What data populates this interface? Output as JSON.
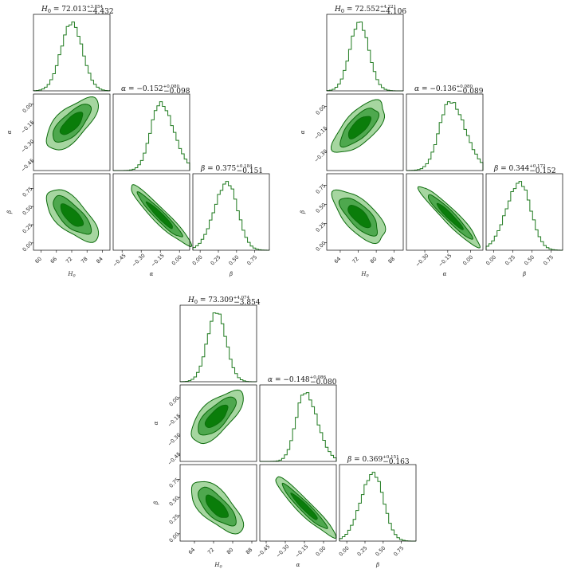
{
  "chart_data": [
    {
      "type": "corner",
      "params": [
        {
          "symbol": "H0",
          "ticks": [
            60,
            66,
            72,
            78,
            84
          ],
          "range": [
            57,
            87
          ],
          "peak": 72.0,
          "sigma": 4.2
        },
        {
          "symbol": "α",
          "ticks": [
            -0.45,
            -0.3,
            -0.15,
            0.0
          ],
          "range": [
            -0.52,
            0.08
          ],
          "peak": -0.152,
          "sigma": 0.09
        },
        {
          "symbol": "β",
          "ticks": [
            0.0,
            0.25,
            0.5,
            0.75
          ],
          "range": [
            -0.1,
            0.95
          ],
          "peak": 0.375,
          "sigma": 0.16
        }
      ],
      "titles": [
        {
          "lhs": "H_0",
          "value": "72.013",
          "plus": "+3.854",
          "minus": "−4.432"
        },
        {
          "lhs": "α",
          "value": "−0.152",
          "plus": "+0.080",
          "minus": "−0.098"
        },
        {
          "lhs": "β",
          "value": "0.375",
          "plus": "+0.184",
          "minus": "−0.151"
        }
      ],
      "tick_labels": {
        "H0": [
          "60",
          "66",
          "72",
          "78",
          "84"
        ],
        "alpha": [
          "−0.45",
          "−0.30",
          "−0.15",
          "0.00"
        ],
        "beta": [
          "0.00",
          "0.25",
          "0.50",
          "0.75"
        ]
      }
    },
    {
      "type": "corner",
      "params": [
        {
          "symbol": "H0",
          "ticks": [
            64,
            72,
            80,
            88
          ],
          "range": [
            58,
            92
          ],
          "peak": 72.5,
          "sigma": 4.2
        },
        {
          "symbol": "α",
          "ticks": [
            -0.3,
            -0.15,
            0.0
          ],
          "range": [
            -0.42,
            0.08
          ],
          "peak": -0.136,
          "sigma": 0.085
        },
        {
          "symbol": "β",
          "ticks": [
            0.0,
            0.25,
            0.5,
            0.75
          ],
          "range": [
            -0.1,
            0.9
          ],
          "peak": 0.344,
          "sigma": 0.16
        }
      ],
      "titles": [
        {
          "lhs": "H_0",
          "value": "72.552",
          "plus": "+4.221",
          "minus": "−4.106"
        },
        {
          "lhs": "α",
          "value": "−0.136",
          "plus": "+0.080",
          "minus": "−0.089"
        },
        {
          "lhs": "β",
          "value": "0.344",
          "plus": "+0.172",
          "minus": "−0.152"
        }
      ],
      "tick_labels": {
        "H0": [
          "64",
          "72",
          "80",
          "88"
        ],
        "alpha": [
          "−0.30",
          "−0.15",
          "0.00"
        ],
        "beta": [
          "0.00",
          "0.25",
          "0.50",
          "0.75"
        ]
      }
    },
    {
      "type": "corner",
      "params": [
        {
          "symbol": "H0",
          "ticks": [
            64,
            72,
            80,
            88
          ],
          "range": [
            58,
            90
          ],
          "peak": 73.3,
          "sigma": 3.9
        },
        {
          "symbol": "α",
          "ticks": [
            -0.45,
            -0.3,
            -0.15,
            0.0
          ],
          "range": [
            -0.5,
            0.1
          ],
          "peak": -0.148,
          "sigma": 0.083
        },
        {
          "symbol": "β",
          "ticks": [
            0.0,
            0.25,
            0.5,
            0.75
          ],
          "range": [
            -0.1,
            0.95
          ],
          "peak": 0.369,
          "sigma": 0.157
        }
      ],
      "titles": [
        {
          "lhs": "H_0",
          "value": "73.309",
          "plus": "+4.074",
          "minus": "−3.854"
        },
        {
          "lhs": "α",
          "value": "−0.148",
          "plus": "+0.086",
          "minus": "−0.080"
        },
        {
          "lhs": "β",
          "value": "0.369",
          "plus": "+0.151",
          "minus": "−0.163"
        }
      ],
      "tick_labels": {
        "H0": [
          "64",
          "72",
          "80",
          "88"
        ],
        "alpha": [
          "−0.45",
          "−0.30",
          "−0.15",
          "0.00"
        ],
        "beta": [
          "0.00",
          "0.25",
          "0.50",
          "0.75"
        ]
      }
    }
  ],
  "axis_labels": {
    "H0": "H",
    "H0_sub": "0",
    "alpha": "α",
    "beta": "β"
  },
  "colors": {
    "line": "#1f7a1f",
    "fill_inner": "#0a7d0a",
    "fill_mid": "#4ea84e",
    "fill_outer": "#a6d6a0",
    "contour": "#0b6b0b"
  }
}
